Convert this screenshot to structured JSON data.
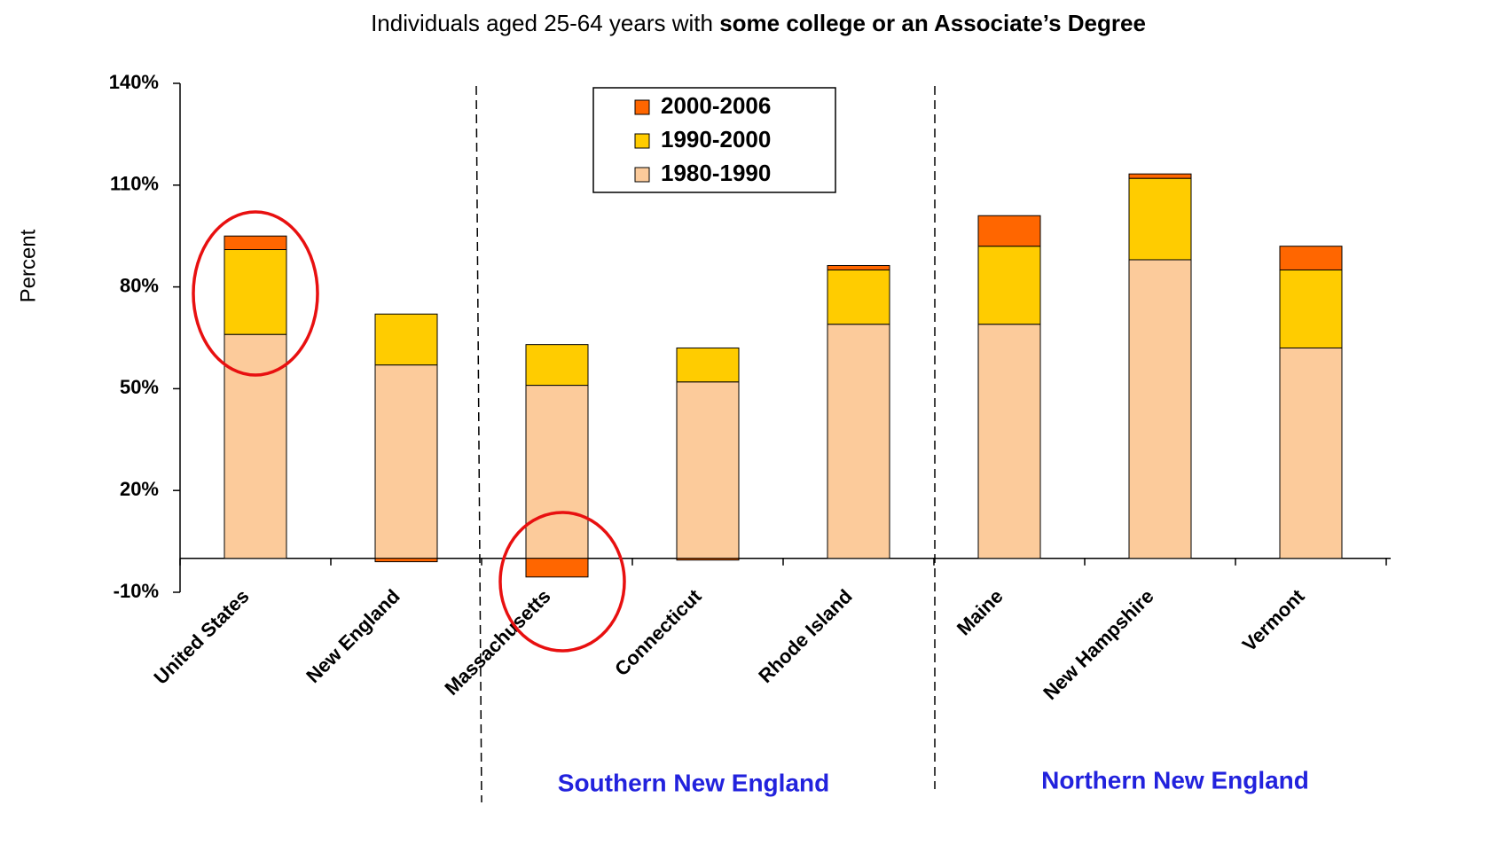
{
  "chart_data": {
    "type": "stacked-bar",
    "title": [
      "Individuals aged 25-64 years with ",
      "some college or an Associate’s Degree"
    ],
    "ylabel": "Percent",
    "categories": [
      "United States",
      "New England",
      "Massachusetts",
      "Connecticut",
      "Rhode Island",
      "Maine",
      "New Hampshire",
      "Vermont"
    ],
    "series": [
      {
        "name": "1980-1990",
        "color": "#fccb9b",
        "values": [
          66,
          57,
          51,
          52,
          69,
          69,
          88,
          62
        ]
      },
      {
        "name": "1990-2000",
        "color": "#ffcc00",
        "values": [
          25,
          15,
          12,
          10,
          16,
          23,
          24,
          23
        ]
      },
      {
        "name": "2000-2006",
        "color": "#ff6600",
        "values": [
          4,
          -1,
          -5.5,
          -0.5,
          1.3,
          9,
          1.3,
          7
        ]
      }
    ],
    "ylim": [
      -10,
      140
    ],
    "yticks": [
      {
        "value": -10,
        "label": "-10%"
      },
      {
        "value": 20,
        "label": "20%"
      },
      {
        "value": 50,
        "label": "50%"
      },
      {
        "value": 80,
        "label": "80%"
      },
      {
        "value": 110,
        "label": "110%"
      },
      {
        "value": 140,
        "label": "140%"
      }
    ],
    "group_labels": [
      "Southern New England",
      "Northern New England"
    ],
    "grid": false
  }
}
